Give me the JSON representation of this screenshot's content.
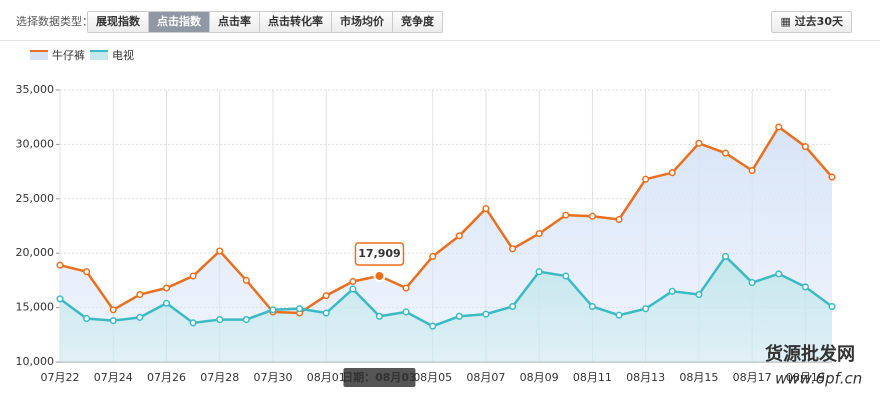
{
  "toolbar": {
    "label": "选择数据类型：",
    "buttons": [
      "展现指数",
      "点击指数",
      "点击率",
      "点击转化率",
      "市场均价",
      "竞争度"
    ],
    "active": 1,
    "range_button": "过去30天"
  },
  "chart_data": {
    "type": "line",
    "categories": [
      "07月22",
      null,
      "07月24",
      null,
      "07月26",
      null,
      "07月28",
      null,
      "07月30",
      null,
      "08月01",
      null,
      null,
      null,
      "08月05",
      null,
      "08月07",
      null,
      "08月09",
      null,
      "08月11",
      null,
      "08月13",
      null,
      "08月15",
      null,
      "08月17",
      null,
      "08月19",
      null
    ],
    "series": [
      {
        "name": "牛仔裤",
        "color": "#ea6e1d",
        "fill": "#d6e3f7",
        "values": [
          18900,
          18300,
          14800,
          16200,
          16800,
          17900,
          20200,
          17500,
          14600,
          14500,
          16100,
          17400,
          17909,
          16800,
          19700,
          21600,
          24100,
          20400,
          21800,
          23500,
          23400,
          23100,
          26800,
          27400,
          30100,
          29200,
          27600,
          31600,
          29800,
          27000
        ],
        "value_labels": [
          null,
          null,
          null,
          null,
          null,
          null,
          null,
          null,
          null,
          null,
          null,
          null,
          "17,909",
          null,
          null,
          null,
          null,
          null,
          null,
          null,
          null,
          null,
          null,
          null,
          null,
          null,
          null,
          null,
          null,
          null
        ]
      },
      {
        "name": "电视",
        "color": "#3bbac4",
        "fill": "#c4e8ec",
        "values": [
          15800,
          14000,
          13800,
          14100,
          15400,
          13600,
          13900,
          13900,
          14800,
          14900,
          14500,
          16700,
          14200,
          14600,
          13300,
          14200,
          14400,
          15100,
          18300,
          17900,
          15100,
          14300,
          14900,
          16500,
          16200,
          19700,
          17300,
          18100,
          16900,
          15100
        ]
      }
    ],
    "x_tooltip": "日期：08月03",
    "ylim": [
      10000,
      35000
    ],
    "yticks": [
      {
        "value": 10000,
        "label": "10,000"
      },
      {
        "value": 15000,
        "label": "15,000"
      },
      {
        "value": 20000,
        "label": "20,000"
      },
      {
        "value": 25000,
        "label": "25,000"
      },
      {
        "value": 30000,
        "label": "30,000"
      },
      {
        "value": 35000,
        "label": "35,000"
      }
    ],
    "grid": true
  },
  "watermark": {
    "title": "货源批发网",
    "url": "www.6pf.cn"
  }
}
